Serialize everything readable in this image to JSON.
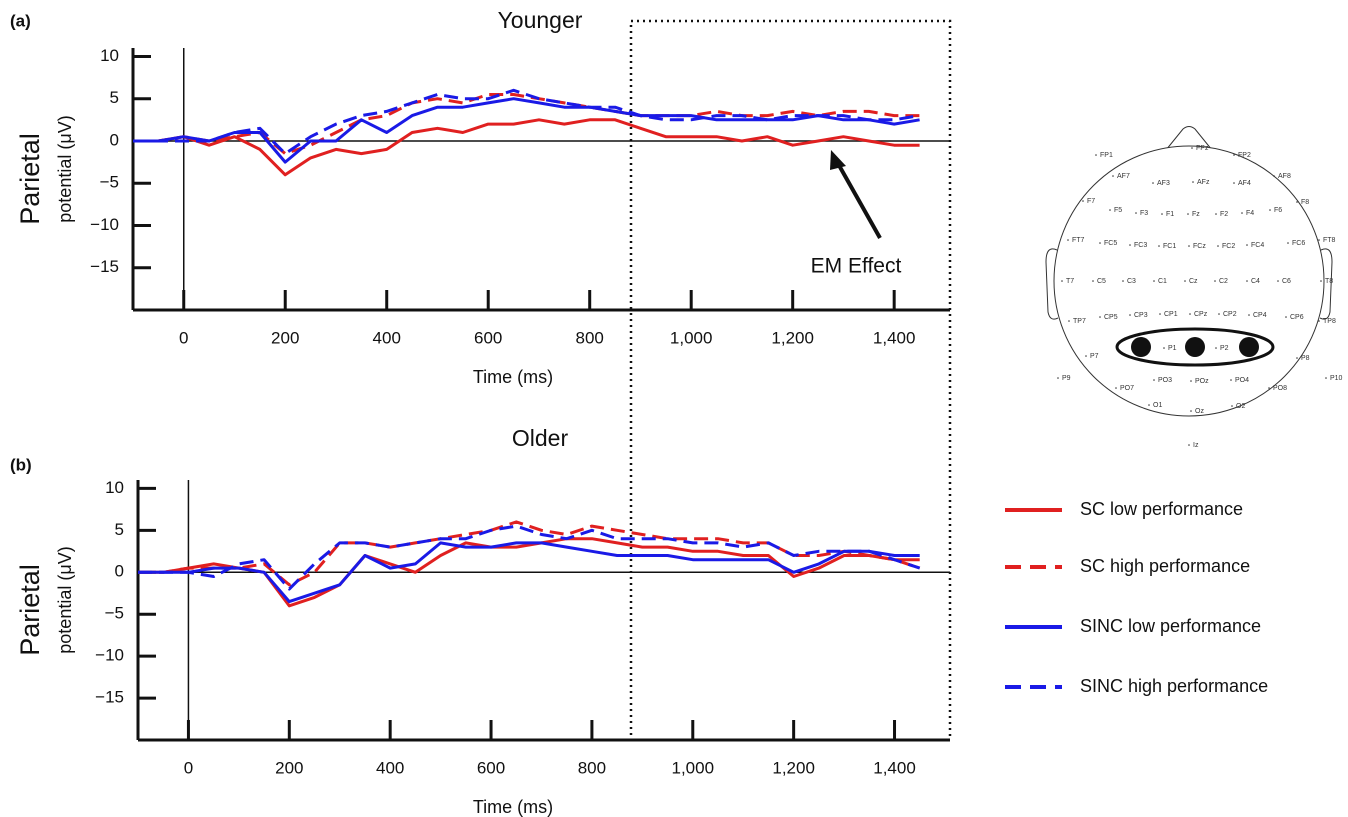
{
  "chart_data": [
    {
      "type": "line",
      "panel_label": "(a)",
      "title": "Younger",
      "ylabel": "Parietal",
      "ylabel_sub": "potential (μV)",
      "xlabel": "Time (ms)",
      "x": [
        -100,
        -50,
        0,
        50,
        100,
        150,
        200,
        250,
        300,
        350,
        400,
        450,
        500,
        550,
        600,
        650,
        700,
        750,
        800,
        850,
        900,
        950,
        1000,
        1050,
        1100,
        1150,
        1200,
        1250,
        1300,
        1350,
        1400,
        1450
      ],
      "xlim": [
        -100,
        1510
      ],
      "ylim": [
        -20,
        11
      ],
      "xticks": [
        0,
        200,
        400,
        600,
        800,
        {
          "value": 1000,
          "label": "1,000"
        },
        {
          "value": 1200,
          "label": "1,200"
        },
        {
          "value": 1400,
          "label": "1,400"
        }
      ],
      "yticks": [
        10,
        5,
        0,
        {
          "value": -5,
          "label": "−5"
        },
        {
          "value": -10,
          "label": "−10"
        },
        {
          "value": -15,
          "label": "−15"
        }
      ],
      "annotations": [
        {
          "text": "EM Effect"
        }
      ],
      "series": [
        {
          "name": "SC low performance",
          "color": "#e02020",
          "dashed": false,
          "values": [
            0,
            0,
            0.5,
            -0.5,
            0.5,
            -1,
            -4,
            -2,
            -1,
            -1.5,
            -1,
            1,
            1.5,
            1,
            2,
            2,
            2.5,
            2,
            2.5,
            2.5,
            1.5,
            0.5,
            0.5,
            0.5,
            0,
            0.5,
            -0.5,
            0,
            0.5,
            0,
            -0.5,
            -0.5
          ]
        },
        {
          "name": "SC high performance",
          "color": "#e02020",
          "dashed": true,
          "values": [
            0,
            0,
            0.5,
            0,
            0.5,
            1,
            -1.5,
            -0.5,
            1,
            2.5,
            3,
            4.5,
            5,
            4.5,
            5.5,
            5.5,
            5,
            4.5,
            4,
            3.5,
            3,
            3,
            3,
            3.5,
            3,
            3,
            3.5,
            3,
            3.5,
            3.5,
            3,
            3
          ]
        },
        {
          "name": "SINC low performance",
          "color": "#1a1ae6",
          "dashed": false,
          "values": [
            0,
            0,
            0.5,
            0,
            1,
            1,
            -2.5,
            0,
            0,
            2.5,
            1,
            3,
            4,
            4,
            4.5,
            5,
            4.5,
            4,
            4,
            3.5,
            3,
            3,
            3,
            2.5,
            2.5,
            2.5,
            2.5,
            3,
            2.5,
            2.5,
            2,
            2.5
          ]
        },
        {
          "name": "SINC high performance",
          "color": "#1a1ae6",
          "dashed": true,
          "values": [
            0,
            0,
            0,
            0,
            1,
            1.5,
            -1.5,
            0.5,
            2,
            3,
            3.5,
            4.5,
            5.5,
            5,
            5,
            6,
            5,
            4.5,
            4,
            4,
            3,
            2.5,
            2.5,
            3,
            3,
            2.5,
            3,
            3,
            3,
            2.5,
            2.5,
            3
          ]
        }
      ]
    },
    {
      "type": "line",
      "panel_label": "(b)",
      "title": "Older",
      "ylabel": "Parietal",
      "ylabel_sub": "potential (μV)",
      "xlabel": "Time (ms)",
      "x": [
        -100,
        -50,
        0,
        50,
        100,
        150,
        200,
        250,
        300,
        350,
        400,
        450,
        500,
        550,
        600,
        650,
        700,
        750,
        800,
        850,
        900,
        950,
        1000,
        1050,
        1100,
        1150,
        1200,
        1250,
        1300,
        1350,
        1400,
        1450
      ],
      "xlim": [
        -100,
        1510
      ],
      "ylim": [
        -20,
        11
      ],
      "xticks": [
        0,
        200,
        400,
        600,
        800,
        {
          "value": 1000,
          "label": "1,000"
        },
        {
          "value": 1200,
          "label": "1,200"
        },
        {
          "value": 1400,
          "label": "1,400"
        }
      ],
      "yticks": [
        10,
        5,
        0,
        {
          "value": -5,
          "label": "−5"
        },
        {
          "value": -10,
          "label": "−10"
        },
        {
          "value": -15,
          "label": "−15"
        }
      ],
      "series": [
        {
          "color": "#e02020",
          "dashed": false,
          "values": [
            0,
            0,
            0.5,
            1,
            0.5,
            0,
            -4,
            -3,
            -1.5,
            2,
            1,
            0,
            2,
            3.5,
            3,
            3,
            3.5,
            4,
            4,
            3.5,
            3,
            3,
            2.5,
            2.5,
            2,
            2,
            -0.5,
            0.5,
            2,
            2,
            1.5,
            1.5
          ]
        },
        {
          "color": "#e02020",
          "dashed": true,
          "values": [
            0,
            0,
            0.5,
            0.5,
            0.5,
            1,
            -1.5,
            0,
            3.5,
            3.5,
            3,
            3.5,
            4,
            4.5,
            5,
            6,
            5,
            4.5,
            5.5,
            5,
            4.5,
            4,
            4,
            4,
            3.5,
            3.5,
            2,
            2,
            2.5,
            2,
            1.5,
            0.5
          ]
        },
        {
          "color": "#1a1ae6",
          "dashed": false,
          "values": [
            0,
            0,
            0,
            0.5,
            0.5,
            0,
            -3.5,
            -2.5,
            -1.5,
            2,
            0.5,
            1,
            3.5,
            3,
            3,
            3.5,
            3.5,
            3,
            2.5,
            2,
            2,
            2,
            1.5,
            1.5,
            1.5,
            1.5,
            0,
            1,
            2.5,
            2.5,
            2,
            2
          ]
        },
        {
          "color": "#1a1ae6",
          "dashed": true,
          "values": [
            0,
            0,
            0,
            -0.5,
            1,
            1.5,
            -2,
            1,
            3.5,
            3.5,
            3,
            3.5,
            4,
            4,
            5,
            5.5,
            4.5,
            4,
            5,
            4,
            4,
            4,
            3.5,
            3.5,
            3,
            3.5,
            2,
            2.5,
            2.5,
            2.5,
            1.5,
            0.5
          ]
        }
      ]
    }
  ],
  "electrode_map": {
    "electrodes": [
      "FP1",
      "FPz",
      "FP2",
      "AF7",
      "AF3",
      "AFz",
      "AF4",
      "AF8",
      "F7",
      "F5",
      "F3",
      "F1",
      "Fz",
      "F2",
      "F4",
      "F6",
      "F8",
      "FT7",
      "FC5",
      "FC3",
      "FC1",
      "FCz",
      "FC2",
      "FC4",
      "FC6",
      "FT8",
      "T7",
      "C5",
      "C3",
      "C1",
      "Cz",
      "C2",
      "C4",
      "C6",
      "T8",
      "TP7",
      "CP5",
      "CP3",
      "CP1",
      "CPz",
      "CP2",
      "CP4",
      "CP6",
      "TP8",
      "P7",
      "P1",
      "P2",
      "P8",
      "P9",
      "P10",
      "PO7",
      "PO3",
      "POz",
      "PO4",
      "PO8",
      "O1",
      "Oz",
      "O2",
      "Iz"
    ]
  }
}
